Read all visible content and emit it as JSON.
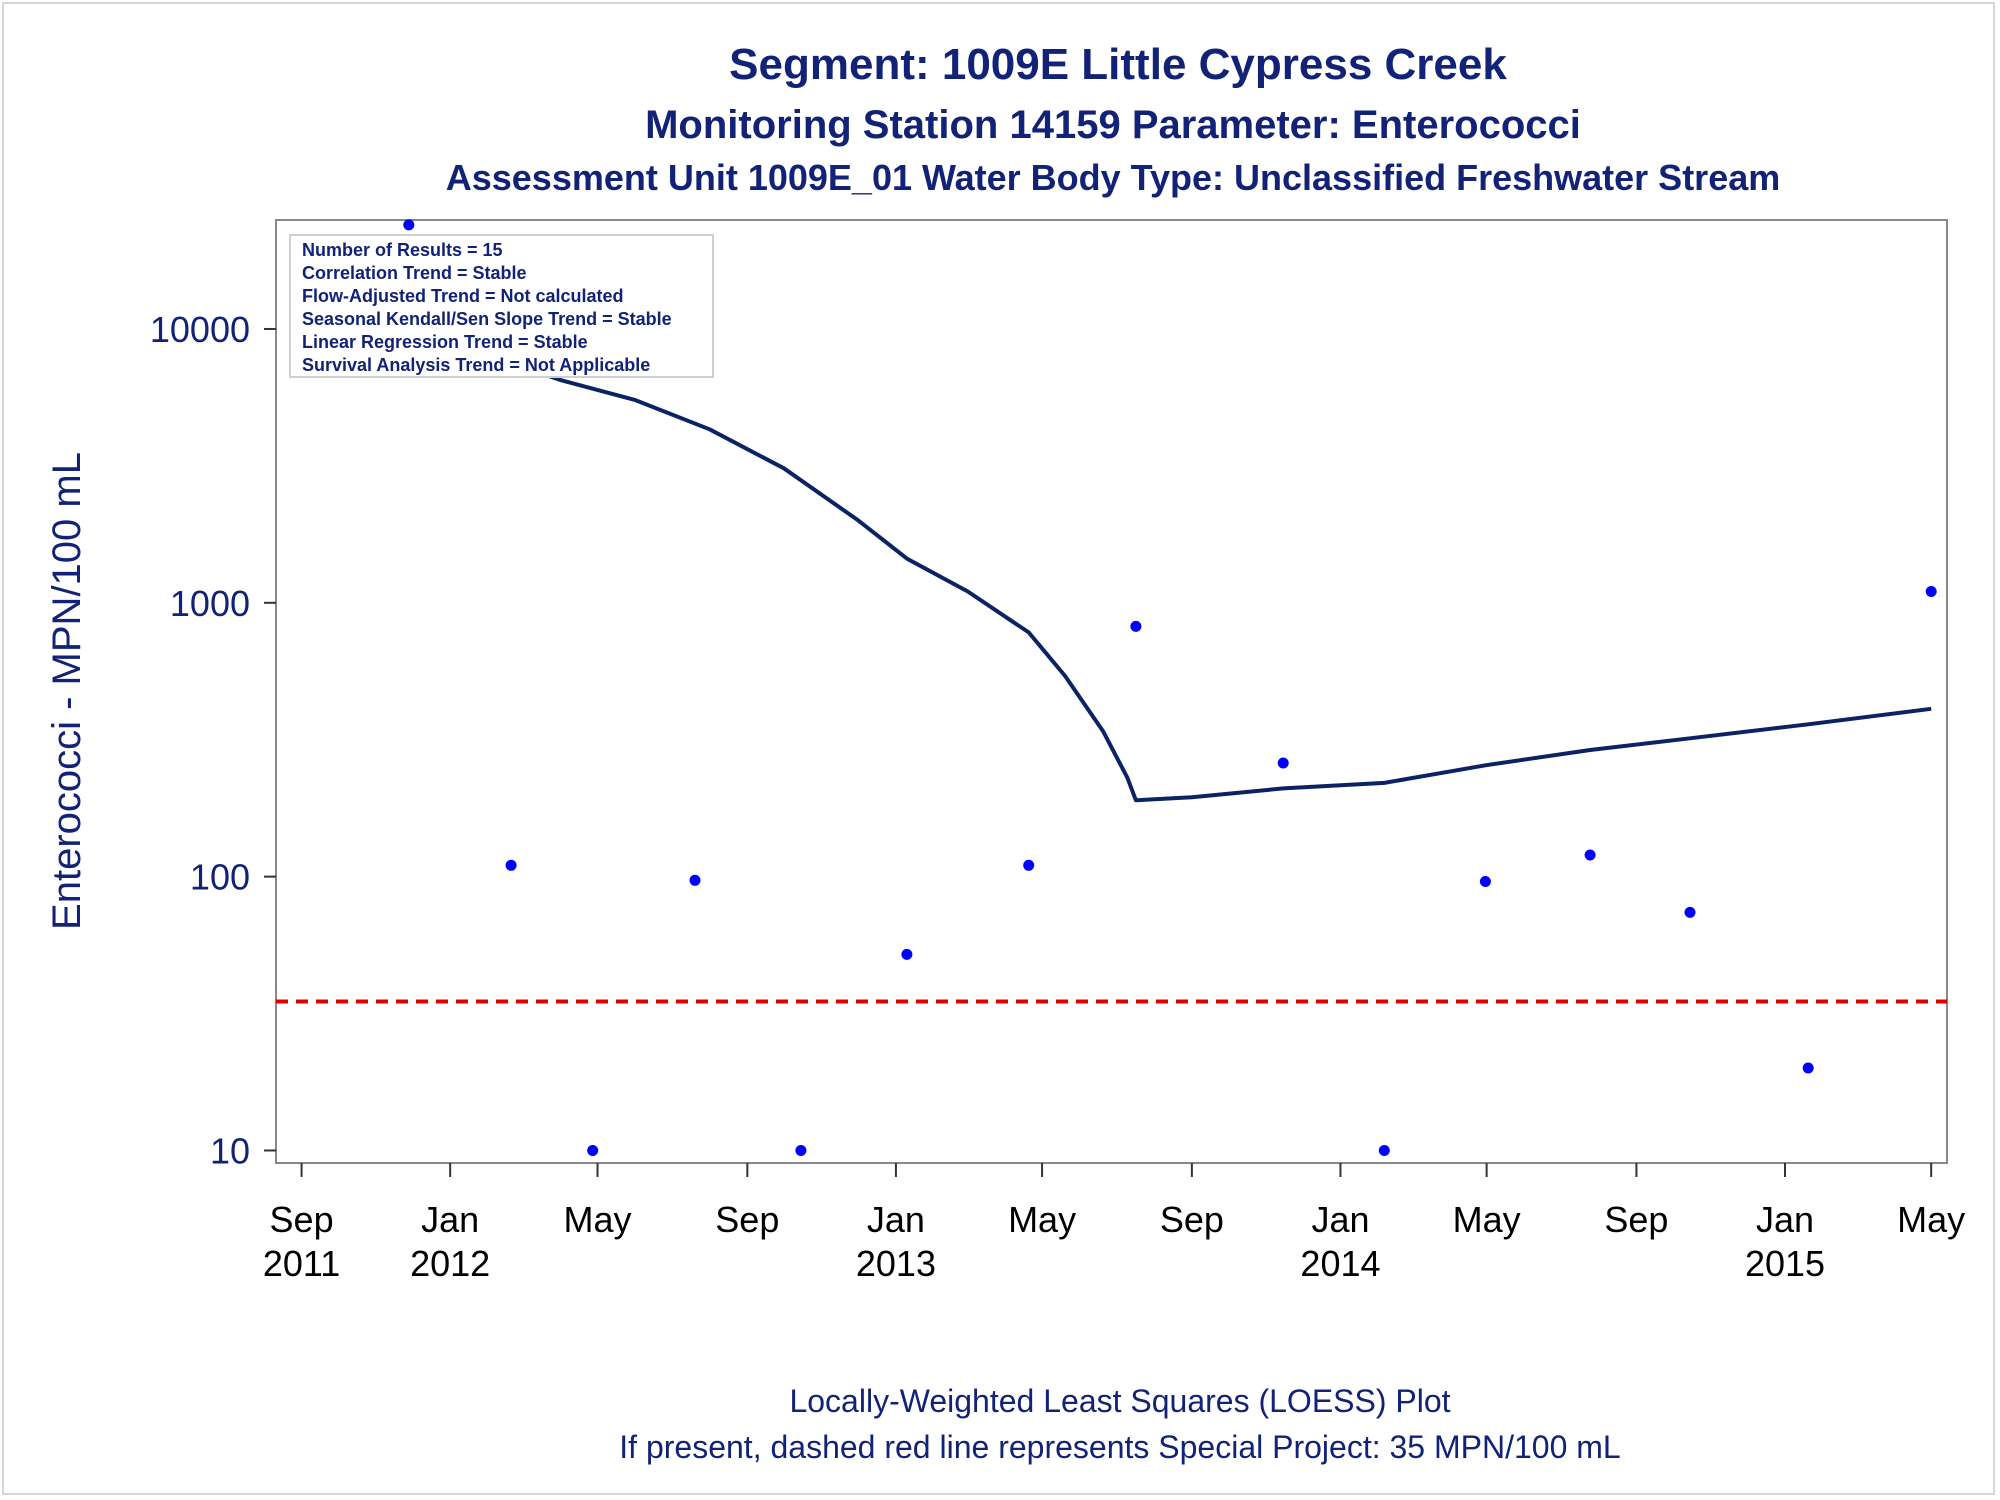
{
  "chart_data": {
    "type": "scatter",
    "title": "Segment: 1009E  Little Cypress Creek",
    "subtitle": "Monitoring Station 14159 Parameter: Enterococci",
    "subtitle2": "Assessment Unit 1009E_01   Water Body Type: Unclassified Freshwater Stream",
    "ylabel": "Enterococci - MPN/100 mL",
    "yscale": "log",
    "ylim": [
      9,
      25000
    ],
    "yticks": [
      {
        "value": 10,
        "label": "10"
      },
      {
        "value": 100,
        "label": "100"
      },
      {
        "value": 1000,
        "label": "1000"
      },
      {
        "value": 10000,
        "label": "10000"
      }
    ],
    "xlim": [
      "2011-08-11",
      "2015-05-14"
    ],
    "xticks": [
      {
        "date": "2011-09-01",
        "label1": "Sep",
        "label2": "2011"
      },
      {
        "date": "2012-01-01",
        "label1": "Jan",
        "label2": "2012"
      },
      {
        "date": "2012-05-01",
        "label1": "May",
        "label2": ""
      },
      {
        "date": "2012-09-01",
        "label1": "Sep",
        "label2": ""
      },
      {
        "date": "2013-01-01",
        "label1": "Jan",
        "label2": "2013"
      },
      {
        "date": "2013-05-01",
        "label1": "May",
        "label2": ""
      },
      {
        "date": "2013-09-01",
        "label1": "Sep",
        "label2": ""
      },
      {
        "date": "2014-01-01",
        "label1": "Jan",
        "label2": "2014"
      },
      {
        "date": "2014-05-01",
        "label1": "May",
        "label2": ""
      },
      {
        "date": "2014-09-01",
        "label1": "Sep",
        "label2": ""
      },
      {
        "date": "2015-01-01",
        "label1": "Jan",
        "label2": "2015"
      },
      {
        "date": "2015-05-01",
        "label1": "May",
        "label2": ""
      }
    ],
    "series": [
      {
        "kind": "points",
        "color": "#0000ff",
        "points": [
          {
            "x": "2011-11-28",
            "y": 24000
          },
          {
            "x": "2012-02-20",
            "y": 110
          },
          {
            "x": "2012-04-27",
            "y": 10
          },
          {
            "x": "2012-07-20",
            "y": 97
          },
          {
            "x": "2012-10-15",
            "y": 10
          },
          {
            "x": "2013-01-10",
            "y": 52
          },
          {
            "x": "2013-04-20",
            "y": 110
          },
          {
            "x": "2013-07-17",
            "y": 820
          },
          {
            "x": "2013-11-15",
            "y": 260
          },
          {
            "x": "2014-02-06",
            "y": 10
          },
          {
            "x": "2014-04-30",
            "y": 96
          },
          {
            "x": "2014-07-25",
            "y": 120
          },
          {
            "x": "2014-10-15",
            "y": 74
          },
          {
            "x": "2015-01-20",
            "y": 20
          },
          {
            "x": "2015-05-01",
            "y": 1100
          }
        ]
      },
      {
        "kind": "line",
        "color": "#0b2265",
        "points": [
          {
            "x": "2011-11-28",
            "y": 8300
          },
          {
            "x": "2012-01-01",
            "y": 7900
          },
          {
            "x": "2012-02-20",
            "y": 7500
          },
          {
            "x": "2012-04-01",
            "y": 6500
          },
          {
            "x": "2012-06-01",
            "y": 5500
          },
          {
            "x": "2012-08-01",
            "y": 4300
          },
          {
            "x": "2012-10-01",
            "y": 3100
          },
          {
            "x": "2012-12-01",
            "y": 2000
          },
          {
            "x": "2013-01-10",
            "y": 1450
          },
          {
            "x": "2013-03-01",
            "y": 1100
          },
          {
            "x": "2013-04-20",
            "y": 780
          },
          {
            "x": "2013-05-20",
            "y": 540
          },
          {
            "x": "2013-06-20",
            "y": 340
          },
          {
            "x": "2013-07-10",
            "y": 230
          },
          {
            "x": "2013-07-17",
            "y": 190
          },
          {
            "x": "2013-09-01",
            "y": 195
          },
          {
            "x": "2013-11-15",
            "y": 210
          },
          {
            "x": "2014-02-06",
            "y": 220
          },
          {
            "x": "2014-04-30",
            "y": 255
          },
          {
            "x": "2014-07-25",
            "y": 290
          },
          {
            "x": "2014-10-15",
            "y": 320
          },
          {
            "x": "2015-01-20",
            "y": 360
          },
          {
            "x": "2015-05-01",
            "y": 410
          }
        ]
      }
    ],
    "reference_line": {
      "y": 35,
      "color": "#dd0000",
      "style": "dashed"
    },
    "inset": [
      "Number of Results = 15",
      "Correlation Trend = Stable",
      "Flow-Adjusted Trend = Not calculated",
      "Seasonal Kendall/Sen Slope Trend = Stable",
      "Linear Regression Trend = Stable",
      "Survival Analysis Trend = Not Applicable"
    ],
    "footnotes": [
      "Locally-Weighted Least Squares (LOESS) Plot",
      "If present, dashed red line represents Special Project: 35 MPN/100 mL"
    ],
    "grid": false
  }
}
